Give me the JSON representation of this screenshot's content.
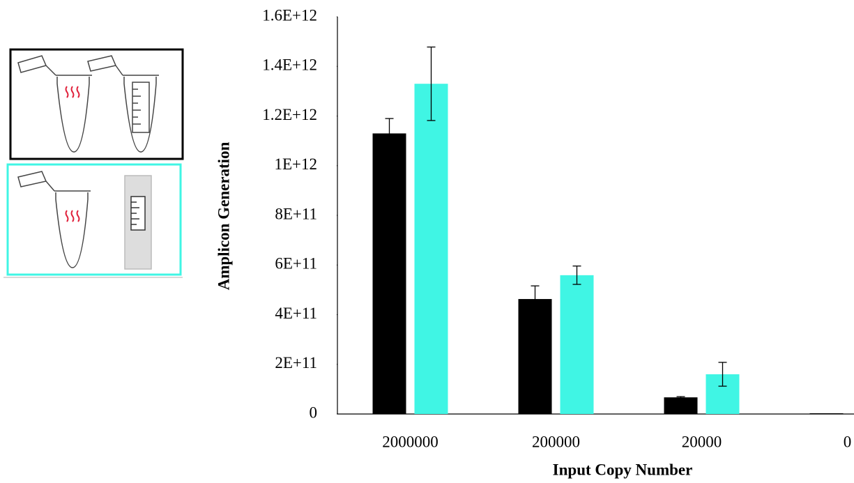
{
  "chart_data": {
    "type": "bar",
    "x_label": "Input Copy Number",
    "y_label": "Amplicon Generation",
    "categories": [
      "2000000",
      "200000",
      "20000",
      "0"
    ],
    "series": [
      {
        "color": "#000000",
        "values": [
          1130000000000,
          463000000000,
          67000000000,
          3000000000
        ],
        "errors": [
          60000000000,
          53000000000,
          3000000000,
          0
        ]
      },
      {
        "color": "#40f5e4",
        "values": [
          1330000000000,
          559000000000,
          160000000000,
          0
        ],
        "errors": [
          148000000000,
          37000000000,
          48000000000,
          0
        ]
      }
    ],
    "ylim": [
      0,
      1600000000000
    ],
    "yticks": [
      0,
      {
        "value": 200000000000,
        "label": "2E+11"
      },
      {
        "value": 400000000000,
        "label": "4E+11"
      },
      {
        "value": 600000000000,
        "label": "6E+11"
      },
      {
        "value": 800000000000,
        "label": "8E+11"
      },
      {
        "value": 1000000000000,
        "label": "1E+12"
      },
      {
        "value": 1200000000000,
        "label": "1.2E+12"
      },
      {
        "value": 1400000000000,
        "label": "1.4E+12"
      },
      {
        "value": 1600000000000,
        "label": "1.6E+12"
      }
    ],
    "grid": false
  }
}
